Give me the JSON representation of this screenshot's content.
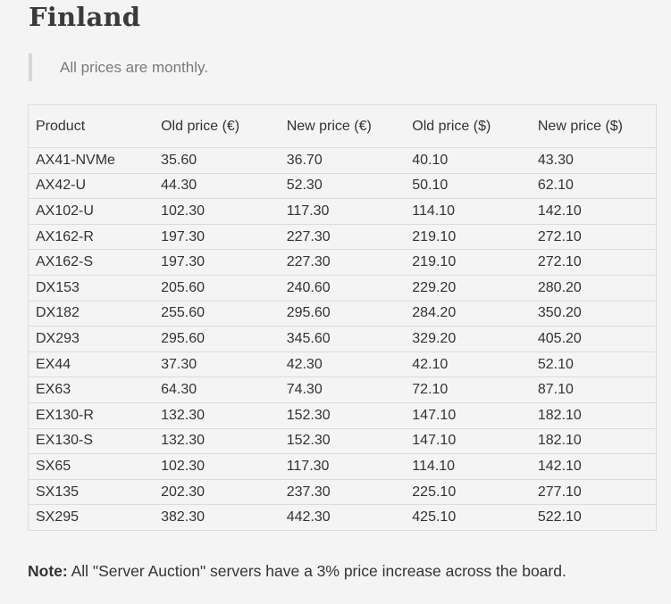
{
  "heading": "Finland",
  "notice": "All prices are monthly.",
  "table": {
    "headers": [
      "Product",
      "Old price (€)",
      "New price (€)",
      "Old price ($)",
      "New price ($)"
    ],
    "rows": [
      [
        "AX41-NVMe",
        "35.60",
        "36.70",
        "40.10",
        "43.30"
      ],
      [
        "AX42-U",
        "44.30",
        "52.30",
        "50.10",
        "62.10"
      ],
      [
        "AX102-U",
        "102.30",
        "117.30",
        "114.10",
        "142.10"
      ],
      [
        "AX162-R",
        "197.30",
        "227.30",
        "219.10",
        "272.10"
      ],
      [
        "AX162-S",
        "197.30",
        "227.30",
        "219.10",
        "272.10"
      ],
      [
        "DX153",
        "205.60",
        "240.60",
        "229.20",
        "280.20"
      ],
      [
        "DX182",
        "255.60",
        "295.60",
        "284.20",
        "350.20"
      ],
      [
        "DX293",
        "295.60",
        "345.60",
        "329.20",
        "405.20"
      ],
      [
        "EX44",
        "37.30",
        "42.30",
        "42.10",
        "52.10"
      ],
      [
        "EX63",
        "64.30",
        "74.30",
        "72.10",
        "87.10"
      ],
      [
        "EX130-R",
        "132.30",
        "152.30",
        "147.10",
        "182.10"
      ],
      [
        "EX130-S",
        "132.30",
        "152.30",
        "147.10",
        "182.10"
      ],
      [
        "SX65",
        "102.30",
        "117.30",
        "114.10",
        "142.10"
      ],
      [
        "SX135",
        "202.30",
        "237.30",
        "225.10",
        "277.10"
      ],
      [
        "SX295",
        "382.30",
        "442.30",
        "425.10",
        "522.10"
      ]
    ]
  },
  "note": {
    "label": "Note:",
    "text": " All \"Server Auction\" servers have a 3% price increase across the board."
  }
}
